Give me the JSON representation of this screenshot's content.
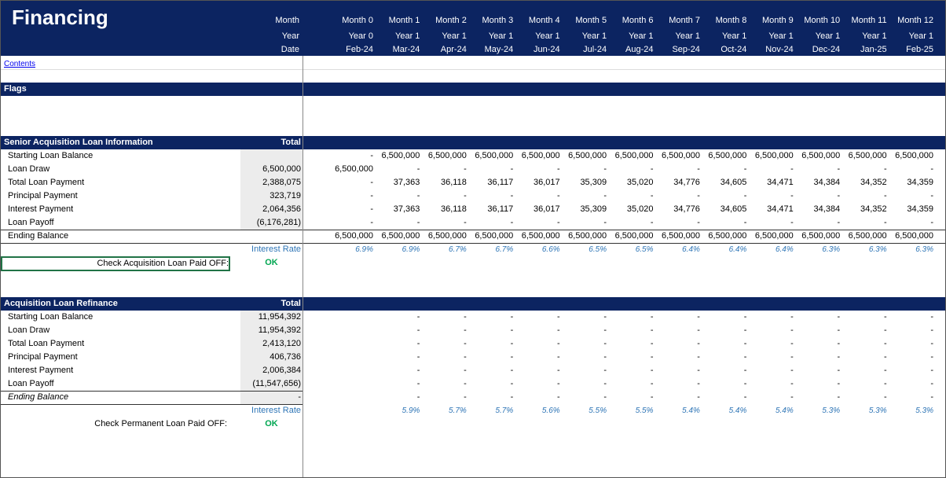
{
  "header": {
    "title": "Financing",
    "row_labels": [
      "Month",
      "Year",
      "Date"
    ],
    "months": [
      "Month 0",
      "Month 1",
      "Month 2",
      "Month 3",
      "Month 4",
      "Month 5",
      "Month 6",
      "Month 7",
      "Month 8",
      "Month 9",
      "Month 10",
      "Month 11",
      "Month 12"
    ],
    "years": [
      "Year 0",
      "Year 1",
      "Year 1",
      "Year 1",
      "Year 1",
      "Year 1",
      "Year 1",
      "Year 1",
      "Year 1",
      "Year 1",
      "Year 1",
      "Year 1",
      "Year 1"
    ],
    "dates": [
      "Feb-24",
      "Mar-24",
      "Apr-24",
      "May-24",
      "Jun-24",
      "Jul-24",
      "Aug-24",
      "Sep-24",
      "Oct-24",
      "Nov-24",
      "Dec-24",
      "Jan-25",
      "Feb-25"
    ]
  },
  "link": "Contents",
  "flags": {
    "title": "Flags"
  },
  "senior": {
    "title": "Senior Acquisition Loan Information",
    "total_label": "Total",
    "rows": [
      {
        "label": "Starting Loan Balance",
        "values": [
          "-",
          "6,500,000",
          "6,500,000",
          "6,500,000",
          "6,500,000",
          "6,500,000",
          "6,500,000",
          "6,500,000",
          "6,500,000",
          "6,500,000",
          "6,500,000",
          "6,500,000",
          "6,500,000"
        ]
      },
      {
        "label": "Loan Draw",
        "total": "6,500,000",
        "values": [
          "6,500,000",
          "-",
          "-",
          "-",
          "-",
          "-",
          "-",
          "-",
          "-",
          "-",
          "-",
          "-",
          "-"
        ]
      },
      {
        "label": "Total Loan Payment",
        "total": "2,388,075",
        "values": [
          "-",
          "37,363",
          "36,118",
          "36,117",
          "36,017",
          "35,309",
          "35,020",
          "34,776",
          "34,605",
          "34,471",
          "34,384",
          "34,352",
          "34,359"
        ]
      },
      {
        "label": "Principal Payment",
        "total": "323,719",
        "values": [
          "-",
          "-",
          "-",
          "-",
          "-",
          "-",
          "-",
          "-",
          "-",
          "-",
          "-",
          "-",
          "-"
        ]
      },
      {
        "label": "Interest Payment",
        "total": "2,064,356",
        "values": [
          "-",
          "37,363",
          "36,118",
          "36,117",
          "36,017",
          "35,309",
          "35,020",
          "34,776",
          "34,605",
          "34,471",
          "34,384",
          "34,352",
          "34,359"
        ]
      },
      {
        "label": "Loan Payoff",
        "total": "(6,176,281)",
        "values": [
          "-",
          "-",
          "-",
          "-",
          "-",
          "-",
          "-",
          "-",
          "-",
          "-",
          "-",
          "-",
          "-"
        ]
      },
      {
        "label": "Ending Balance",
        "values": [
          "6,500,000",
          "6,500,000",
          "6,500,000",
          "6,500,000",
          "6,500,000",
          "6,500,000",
          "6,500,000",
          "6,500,000",
          "6,500,000",
          "6,500,000",
          "6,500,000",
          "6,500,000",
          "6,500,000"
        ]
      }
    ],
    "rate_label": "Interest Rate",
    "rates": [
      "6.9%",
      "6.9%",
      "6.7%",
      "6.7%",
      "6.6%",
      "6.5%",
      "6.5%",
      "6.4%",
      "6.4%",
      "6.4%",
      "6.3%",
      "6.3%",
      "6.3%"
    ],
    "check_label": "Check Acquisition Loan Paid OFF:",
    "check": "OK"
  },
  "refinance": {
    "title": "Acquisition Loan Refinance",
    "total_label": "Total",
    "rows": [
      {
        "label": "Starting Loan Balance",
        "total": "11,954,392",
        "values": [
          "-",
          "-",
          "-",
          "-",
          "-",
          "-",
          "-",
          "-",
          "-",
          "-",
          "-",
          "-"
        ]
      },
      {
        "label": "Loan Draw",
        "total": "11,954,392",
        "values": [
          "-",
          "-",
          "-",
          "-",
          "-",
          "-",
          "-",
          "-",
          "-",
          "-",
          "-",
          "-"
        ]
      },
      {
        "label": "Total Loan Payment",
        "total": "2,413,120",
        "values": [
          "-",
          "-",
          "-",
          "-",
          "-",
          "-",
          "-",
          "-",
          "-",
          "-",
          "-",
          "-"
        ]
      },
      {
        "label": "Principal Payment",
        "total": "406,736",
        "values": [
          "-",
          "-",
          "-",
          "-",
          "-",
          "-",
          "-",
          "-",
          "-",
          "-",
          "-",
          "-"
        ]
      },
      {
        "label": "Interest Payment",
        "total": "2,006,384",
        "values": [
          "-",
          "-",
          "-",
          "-",
          "-",
          "-",
          "-",
          "-",
          "-",
          "-",
          "-",
          "-"
        ]
      },
      {
        "label": "Loan Payoff",
        "total": "(11,547,656)",
        "values": [
          "-",
          "-",
          "-",
          "-",
          "-",
          "-",
          "-",
          "-",
          "-",
          "-",
          "-",
          "-"
        ]
      },
      {
        "label": "Ending Balance",
        "total": "-",
        "values": [
          "-",
          "-",
          "-",
          "-",
          "-",
          "-",
          "-",
          "-",
          "-",
          "-",
          "-",
          "-"
        ]
      }
    ],
    "rate_label": "Interest Rate",
    "rates": [
      "5.9%",
      "5.7%",
      "5.7%",
      "5.6%",
      "5.5%",
      "5.5%",
      "5.4%",
      "5.4%",
      "5.4%",
      "5.3%",
      "5.3%",
      "5.3%"
    ],
    "check_label": "Check Permanent Loan Paid OFF:",
    "check": "OK"
  }
}
